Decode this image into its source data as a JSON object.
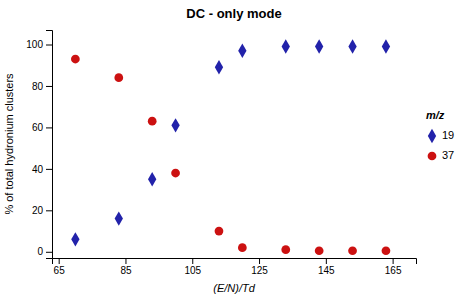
{
  "chart_data": {
    "type": "scatter",
    "title": "DC - only mode",
    "xlabel": "(E/N)/Td",
    "ylabel": "% of total hydronium clusters",
    "xlim": [
      63,
      172
    ],
    "ylim": [
      -3,
      107
    ],
    "xticks": [
      65,
      85,
      105,
      125,
      145,
      165
    ],
    "yticks": [
      0,
      20,
      40,
      60,
      80,
      100
    ],
    "grid": false,
    "legend": "right",
    "legend_title": "m/z",
    "series": [
      {
        "name": "19",
        "color": "#2222aa",
        "marker": "diamond",
        "x": [
          70,
          83,
          93,
          100,
          113,
          120,
          133,
          143,
          153,
          163
        ],
        "values": [
          6,
          16,
          35,
          61,
          89,
          97,
          99,
          99,
          99,
          99
        ]
      },
      {
        "name": "37",
        "color": "#cc1111",
        "marker": "circle",
        "x": [
          70,
          83,
          93,
          100,
          113,
          120,
          133,
          143,
          153,
          163
        ],
        "values": [
          93,
          84,
          63,
          38,
          10,
          2,
          1,
          0.5,
          0.5,
          0.5
        ]
      }
    ]
  }
}
